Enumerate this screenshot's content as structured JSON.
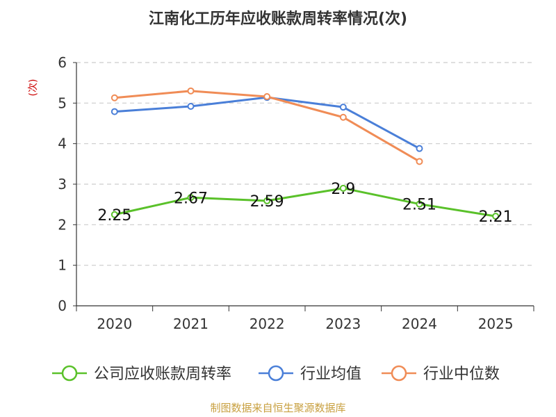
{
  "chart_data": {
    "type": "line",
    "title": "江南化工历年应收账款周转率情况(次)",
    "ylabel": "(次)",
    "xlabel": "",
    "categories": [
      "2020",
      "2021",
      "2022",
      "2023",
      "2024",
      "2025"
    ],
    "y_ticks": [
      "0",
      "1",
      "2",
      "3",
      "4",
      "5",
      "6"
    ],
    "ylim": [
      0,
      6
    ],
    "grid": true,
    "legend_position": "bottom",
    "series": [
      {
        "name": "公司应收账款周转率",
        "color": "#5ac12a",
        "values": [
          2.25,
          2.67,
          2.59,
          2.9,
          2.51,
          2.21
        ],
        "labels": [
          "2.25",
          "2.67",
          "2.59",
          "2.9",
          "2.51",
          "2.21"
        ]
      },
      {
        "name": "行业均值",
        "color": "#4a7fd8",
        "values": [
          4.79,
          4.92,
          5.14,
          4.9,
          3.88,
          null
        ]
      },
      {
        "name": "行业中位数",
        "color": "#f08c56",
        "values": [
          5.13,
          5.3,
          5.16,
          4.65,
          3.56,
          null
        ]
      }
    ],
    "source": "制图数据来自恒生聚源数据库"
  }
}
